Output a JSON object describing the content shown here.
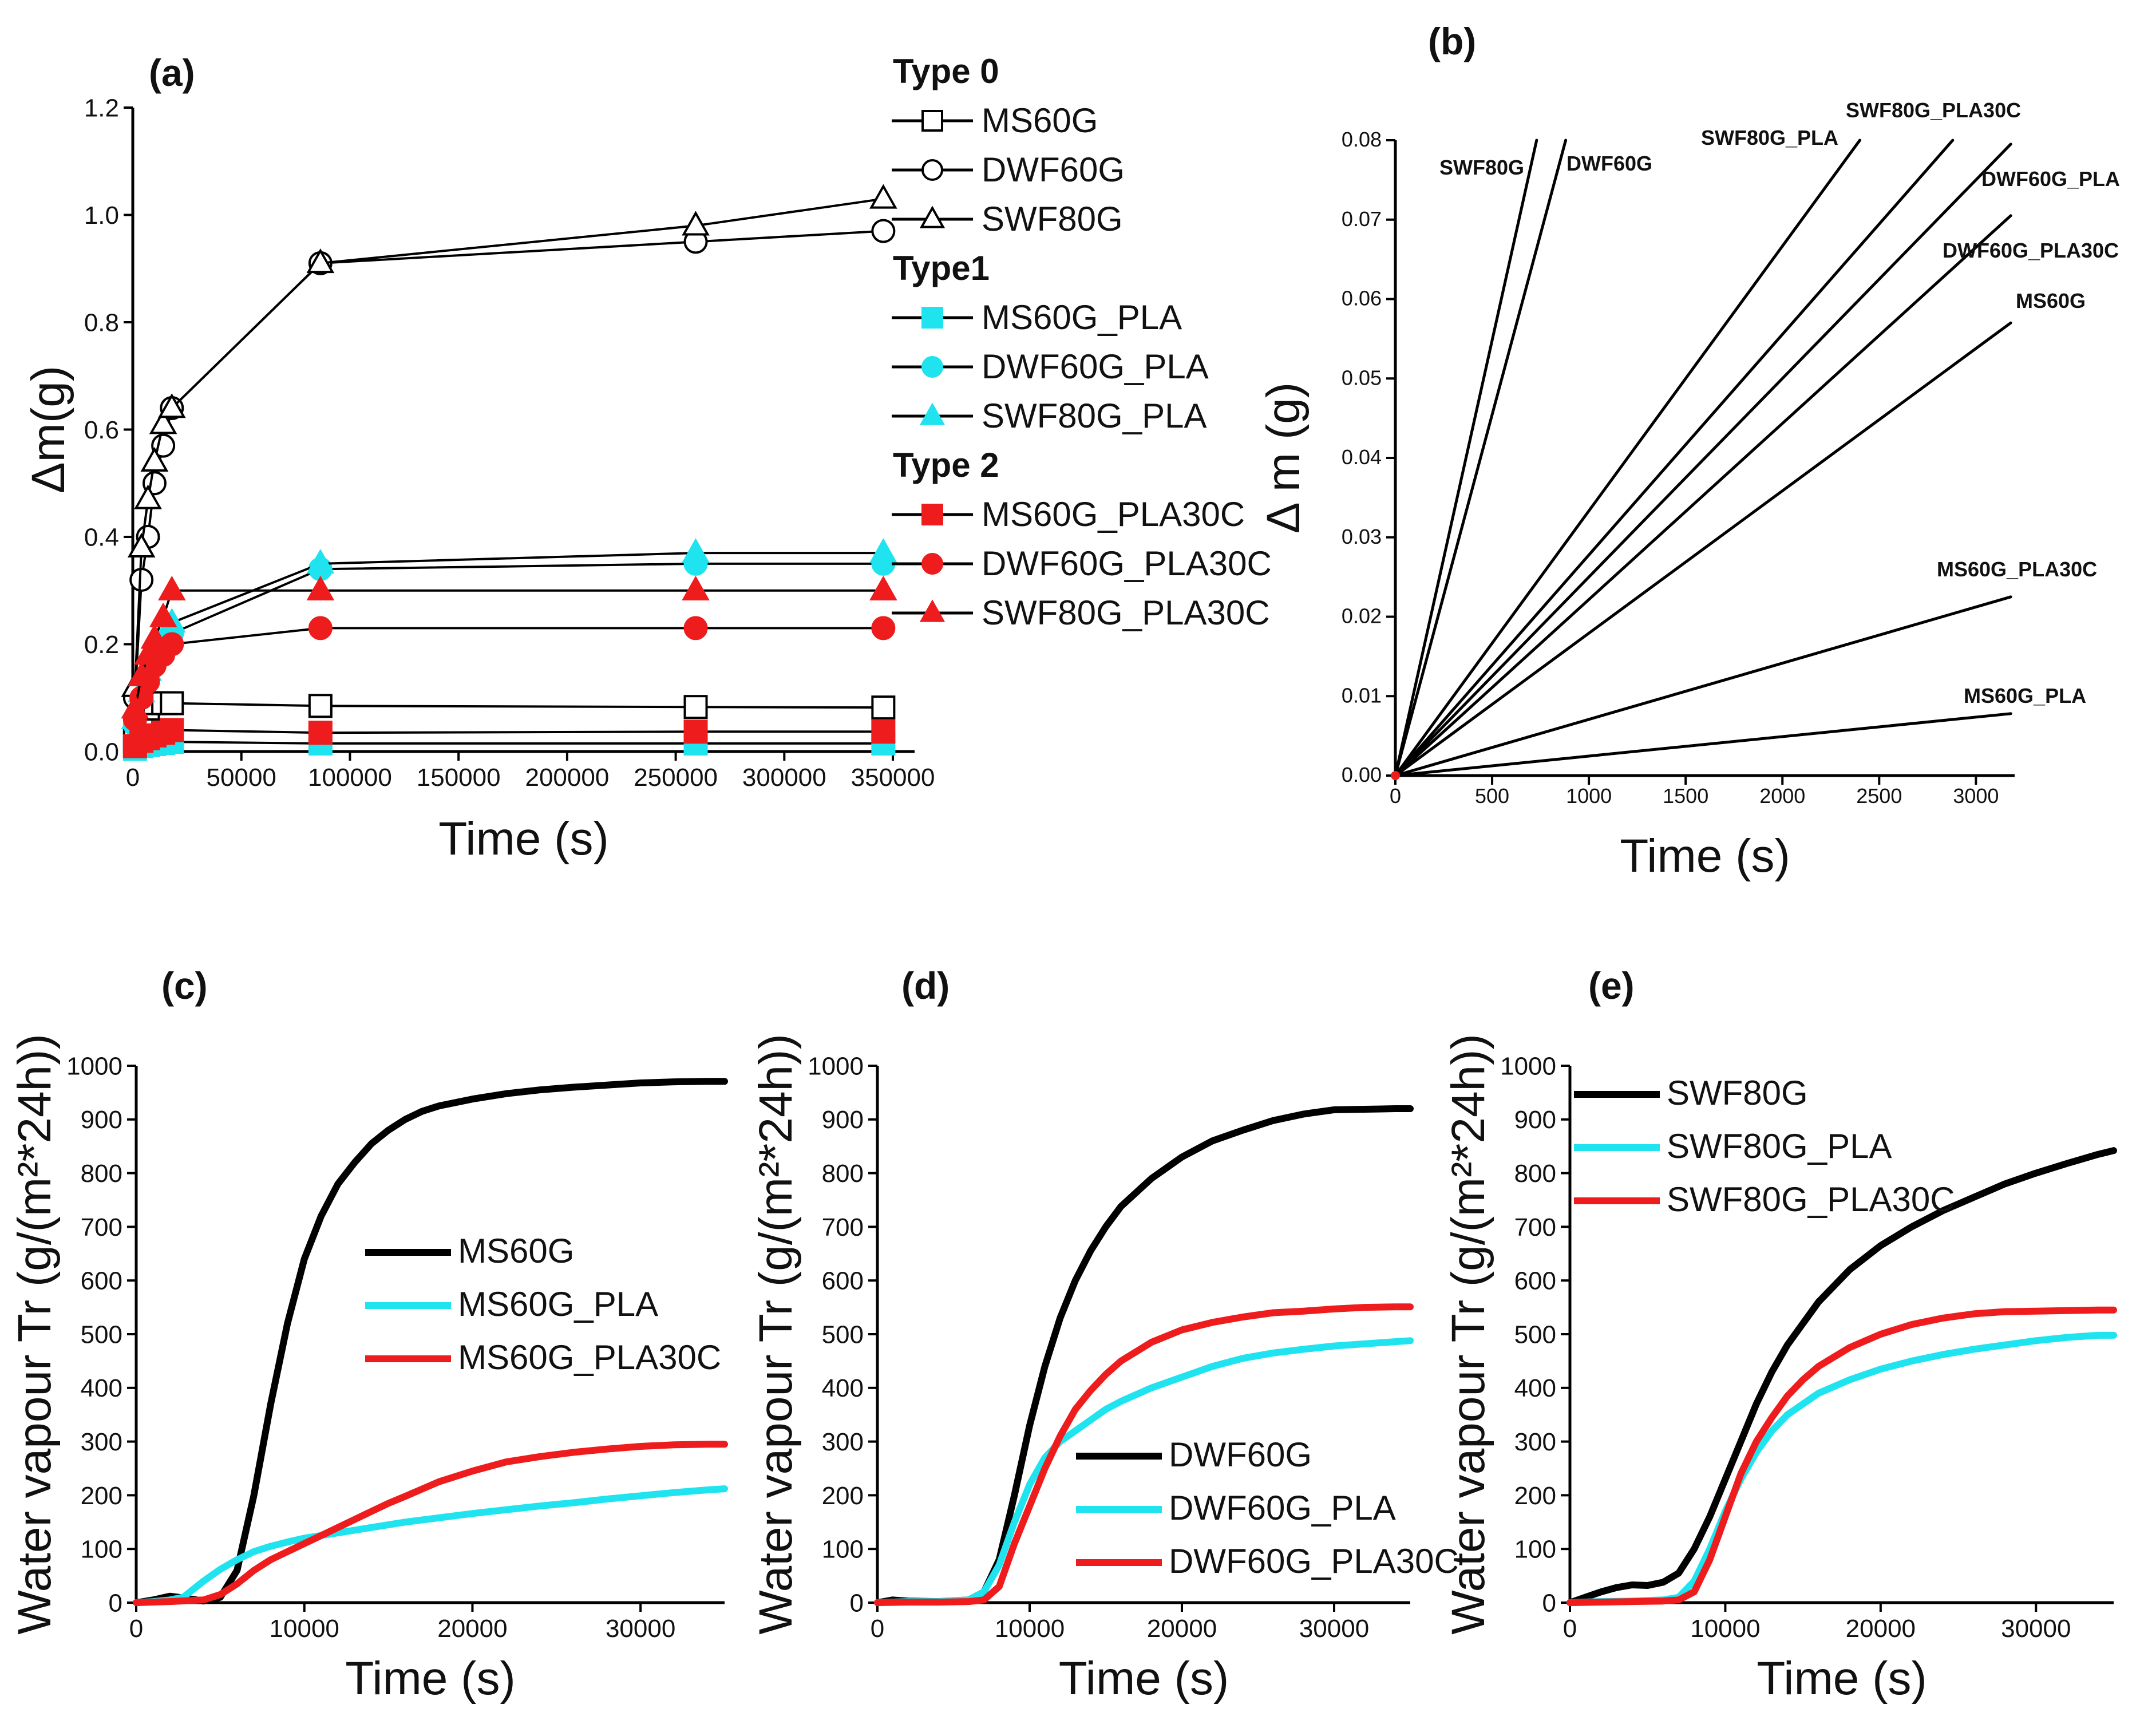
{
  "colors": {
    "black": "#000000",
    "cyan": "#1fe3ee",
    "red": "#ee1c1c"
  },
  "chart_data": [
    {
      "id": "a",
      "type": "line",
      "panel_label": "(a)",
      "xlabel": "Time (s)",
      "ylabel": "Δm(g)",
      "xlim": [
        0,
        360000
      ],
      "ylim": [
        0,
        1.2
      ],
      "xticks": [
        0,
        50000,
        100000,
        150000,
        200000,
        250000,
        300000,
        350000
      ],
      "yticks": [
        0.0,
        0.2,
        0.4,
        0.6,
        0.8,
        1.0,
        1.2
      ],
      "ytick_labels": [
        "0.0",
        "0.2",
        "0.4",
        "0.6",
        "0.8",
        "1.0",
        "1.2"
      ],
      "legend_groups": [
        {
          "title": "Type 0",
          "entries": [
            0,
            1,
            2
          ]
        },
        {
          "title": "Type1",
          "entries": [
            3,
            4,
            5
          ]
        },
        {
          "title": "Type 2",
          "entries": [
            6,
            7,
            8
          ]
        }
      ],
      "series": [
        {
          "name": "MS60G",
          "color": "black",
          "marker": "square",
          "filled": false,
          "x": [
            1000,
            4000,
            7000,
            10000,
            14000,
            18000,
            86400,
            259200,
            345600
          ],
          "y": [
            0.02,
            0.06,
            0.08,
            0.09,
            0.09,
            0.09,
            0.085,
            0.083,
            0.082
          ]
        },
        {
          "name": "DWF60G",
          "color": "black",
          "marker": "circle",
          "filled": false,
          "x": [
            1000,
            4000,
            7000,
            10000,
            14000,
            18000,
            86400,
            259200,
            345600
          ],
          "y": [
            0.1,
            0.32,
            0.4,
            0.5,
            0.57,
            0.64,
            0.91,
            0.95,
            0.97
          ]
        },
        {
          "name": "SWF80G",
          "color": "black",
          "marker": "triangle",
          "filled": false,
          "x": [
            1000,
            4000,
            7000,
            10000,
            14000,
            18000,
            86400,
            259200,
            345600
          ],
          "y": [
            0.12,
            0.38,
            0.47,
            0.54,
            0.61,
            0.64,
            0.91,
            0.98,
            1.03
          ]
        },
        {
          "name": "MS60G_PLA",
          "color": "cyan",
          "marker": "square",
          "filled": true,
          "x": [
            1000,
            4000,
            7000,
            10000,
            14000,
            18000,
            86400,
            259200,
            345600
          ],
          "y": [
            0.005,
            0.01,
            0.012,
            0.014,
            0.016,
            0.018,
            0.015,
            0.015,
            0.015
          ]
        },
        {
          "name": "DWF60G_PLA",
          "color": "cyan",
          "marker": "circle",
          "filled": true,
          "x": [
            1000,
            4000,
            7000,
            10000,
            14000,
            18000,
            86400,
            259200,
            345600
          ],
          "y": [
            0.05,
            0.1,
            0.14,
            0.17,
            0.2,
            0.22,
            0.34,
            0.35,
            0.35
          ]
        },
        {
          "name": "SWF80G_PLA",
          "color": "cyan",
          "marker": "triangle",
          "filled": true,
          "x": [
            1000,
            4000,
            7000,
            10000,
            14000,
            18000,
            86400,
            259200,
            345600
          ],
          "y": [
            0.06,
            0.11,
            0.15,
            0.18,
            0.21,
            0.24,
            0.35,
            0.37,
            0.37
          ]
        },
        {
          "name": "MS60G_PLA30C",
          "color": "red",
          "marker": "square",
          "filled": true,
          "x": [
            1000,
            4000,
            7000,
            10000,
            14000,
            18000,
            86400,
            259200,
            345600
          ],
          "y": [
            0.01,
            0.02,
            0.025,
            0.03,
            0.035,
            0.04,
            0.035,
            0.037,
            0.037
          ]
        },
        {
          "name": "DWF60G_PLA30C",
          "color": "red",
          "marker": "circle",
          "filled": true,
          "x": [
            1000,
            4000,
            7000,
            10000,
            14000,
            18000,
            86400,
            259200,
            345600
          ],
          "y": [
            0.06,
            0.1,
            0.13,
            0.16,
            0.18,
            0.2,
            0.23,
            0.23,
            0.23
          ]
        },
        {
          "name": "SWF80G_PLA30C",
          "color": "red",
          "marker": "triangle",
          "filled": true,
          "x": [
            1000,
            4000,
            7000,
            10000,
            14000,
            18000,
            86400,
            259200,
            345600
          ],
          "y": [
            0.08,
            0.14,
            0.18,
            0.21,
            0.25,
            0.3,
            0.3,
            0.3,
            0.3
          ]
        }
      ]
    },
    {
      "id": "b",
      "type": "line",
      "panel_label": "(b)",
      "xlabel": "Time (s)",
      "ylabel": "Δ m (g)",
      "xlim": [
        0,
        3200
      ],
      "ylim": [
        0,
        0.08
      ],
      "xticks": [
        0,
        500,
        1000,
        1500,
        2000,
        2500,
        3000
      ],
      "yticks": [
        0.0,
        0.01,
        0.02,
        0.03,
        0.04,
        0.05,
        0.06,
        0.07,
        0.08
      ],
      "ytick_labels": [
        "0.00",
        "0.01",
        "0.02",
        "0.03",
        "0.04",
        "0.05",
        "0.06",
        "0.07",
        "0.08"
      ],
      "series": [
        {
          "name": "SWF80G",
          "x": [
            0,
            730
          ],
          "y": [
            0,
            0.08
          ]
        },
        {
          "name": "DWF60G",
          "x": [
            0,
            880
          ],
          "y": [
            0,
            0.08
          ]
        },
        {
          "name": "SWF80G_PLA",
          "x": [
            0,
            2400
          ],
          "y": [
            0,
            0.08
          ]
        },
        {
          "name": "SWF80G_PLA30C",
          "x": [
            0,
            2880
          ],
          "y": [
            0,
            0.08
          ]
        },
        {
          "name": "DWF60G_PLA",
          "x": [
            0,
            3180
          ],
          "y": [
            0,
            0.0795
          ]
        },
        {
          "name": "DWF60G_PLA30C",
          "x": [
            0,
            3180
          ],
          "y": [
            0,
            0.0705
          ]
        },
        {
          "name": "MS60G",
          "x": [
            0,
            3180
          ],
          "y": [
            0,
            0.057
          ]
        },
        {
          "name": "MS60G_PLA30C",
          "x": [
            0,
            3180
          ],
          "y": [
            0,
            0.0225
          ]
        },
        {
          "name": "MS60G_PLA",
          "x": [
            0,
            3180
          ],
          "y": [
            0,
            0.0078
          ]
        }
      ]
    },
    {
      "id": "c",
      "type": "line",
      "panel_label": "(c)",
      "xlabel": "Time (s)",
      "ylabel": "Water vapour Tr (g/(m²*24h))",
      "xlim": [
        0,
        35000
      ],
      "ylim": [
        0,
        1000
      ],
      "xticks": [
        0,
        10000,
        20000,
        30000
      ],
      "yticks": [
        0,
        100,
        200,
        300,
        400,
        500,
        600,
        700,
        800,
        900,
        1000
      ],
      "series": [
        {
          "name": "MS60G",
          "color": "black",
          "x": [
            0,
            1000,
            2000,
            3000,
            4000,
            5000,
            6000,
            7000,
            8000,
            9000,
            10000,
            11000,
            12000,
            13000,
            14000,
            15000,
            16000,
            17000,
            18000,
            20000,
            22000,
            24000,
            26000,
            28000,
            30000,
            32000,
            34000,
            35000
          ],
          "y": [
            0,
            5,
            12,
            8,
            3,
            10,
            60,
            200,
            370,
            520,
            640,
            720,
            780,
            820,
            855,
            880,
            900,
            915,
            925,
            938,
            948,
            955,
            960,
            964,
            968,
            970,
            971,
            971
          ]
        },
        {
          "name": "MS60G_PLA",
          "color": "cyan",
          "x": [
            0,
            1000,
            2000,
            2800,
            4000,
            5000,
            6000,
            7000,
            8000,
            9000,
            10000,
            12000,
            14000,
            16000,
            18000,
            20000,
            22000,
            24000,
            26000,
            28000,
            30000,
            32000,
            34000,
            35000
          ],
          "y": [
            0,
            2,
            5,
            10,
            40,
            62,
            80,
            95,
            105,
            113,
            120,
            130,
            140,
            150,
            158,
            166,
            173,
            180,
            186,
            193,
            199,
            205,
            210,
            212
          ]
        },
        {
          "name": "MS60G_PLA30C",
          "color": "red",
          "x": [
            0,
            2000,
            4000,
            5000,
            6000,
            7000,
            8000,
            9000,
            10000,
            11000,
            12000,
            13000,
            14000,
            15000,
            16000,
            18000,
            20000,
            22000,
            24000,
            26000,
            28000,
            30000,
            32000,
            34000,
            35000
          ],
          "y": [
            0,
            2,
            5,
            15,
            35,
            60,
            80,
            95,
            110,
            125,
            140,
            155,
            170,
            185,
            198,
            225,
            245,
            262,
            272,
            280,
            286,
            291,
            294,
            295,
            295
          ]
        }
      ]
    },
    {
      "id": "d",
      "type": "line",
      "panel_label": "(d)",
      "xlabel": "Time (s)",
      "ylabel": "Water vapour Tr (g/(m²*24h))",
      "xlim": [
        0,
        35000
      ],
      "ylim": [
        0,
        1000
      ],
      "xticks": [
        0,
        10000,
        20000,
        30000
      ],
      "yticks": [
        0,
        100,
        200,
        300,
        400,
        500,
        600,
        700,
        800,
        900,
        1000
      ],
      "series": [
        {
          "name": "DWF60G",
          "color": "black",
          "x": [
            0,
            1000,
            2000,
            4000,
            6000,
            7000,
            8000,
            9000,
            10000,
            11000,
            12000,
            13000,
            14000,
            15000,
            16000,
            18000,
            20000,
            22000,
            24000,
            26000,
            28000,
            30000,
            32000,
            34000,
            35000
          ],
          "y": [
            0,
            5,
            3,
            2,
            5,
            20,
            80,
            200,
            330,
            440,
            530,
            600,
            655,
            700,
            738,
            790,
            830,
            860,
            880,
            898,
            910,
            918,
            919,
            920,
            920
          ]
        },
        {
          "name": "DWF60G_PLA",
          "color": "cyan",
          "x": [
            0,
            2000,
            4000,
            6000,
            7000,
            8000,
            9000,
            10000,
            11000,
            12000,
            13000,
            14000,
            15000,
            16000,
            18000,
            20000,
            22000,
            24000,
            26000,
            28000,
            30000,
            32000,
            34000,
            35000
          ],
          "y": [
            0,
            2,
            2,
            5,
            20,
            70,
            150,
            220,
            270,
            300,
            320,
            340,
            360,
            375,
            400,
            420,
            440,
            455,
            465,
            472,
            478,
            482,
            486,
            488
          ]
        },
        {
          "name": "DWF60G_PLA30C",
          "color": "red",
          "x": [
            0,
            2000,
            4000,
            6000,
            7000,
            8000,
            9000,
            10000,
            11000,
            12000,
            13000,
            14000,
            15000,
            16000,
            18000,
            20000,
            22000,
            24000,
            26000,
            28000,
            30000,
            32000,
            34000,
            35000
          ],
          "y": [
            0,
            1,
            1,
            2,
            5,
            30,
            110,
            180,
            250,
            310,
            360,
            395,
            425,
            450,
            485,
            508,
            522,
            532,
            540,
            543,
            547,
            550,
            551,
            551
          ]
        }
      ]
    },
    {
      "id": "e",
      "type": "line",
      "panel_label": "(e)",
      "xlabel": "Time (s)",
      "ylabel": "Water vapour Tr (g/(m²*24h))",
      "xlim": [
        0,
        35000
      ],
      "ylim": [
        0,
        1000
      ],
      "xticks": [
        0,
        10000,
        20000,
        30000
      ],
      "yticks": [
        0,
        100,
        200,
        300,
        400,
        500,
        600,
        700,
        800,
        900,
        1000
      ],
      "series": [
        {
          "name": "SWF80G",
          "color": "black",
          "x": [
            0,
            1000,
            2000,
            3000,
            4000,
            5000,
            6000,
            7000,
            8000,
            9000,
            10000,
            11000,
            12000,
            13000,
            14000,
            15000,
            16000,
            18000,
            20000,
            22000,
            24000,
            26000,
            28000,
            30000,
            32000,
            34000,
            35000
          ],
          "y": [
            0,
            10,
            20,
            28,
            33,
            32,
            38,
            55,
            100,
            160,
            230,
            300,
            370,
            430,
            480,
            520,
            560,
            620,
            665,
            700,
            730,
            755,
            780,
            800,
            818,
            835,
            842
          ]
        },
        {
          "name": "SWF80G_PLA",
          "color": "cyan",
          "x": [
            0,
            2000,
            4000,
            6000,
            7000,
            8000,
            9000,
            10000,
            11000,
            12000,
            13000,
            14000,
            15000,
            16000,
            18000,
            20000,
            22000,
            24000,
            26000,
            28000,
            30000,
            32000,
            34000,
            35000
          ],
          "y": [
            0,
            2,
            3,
            5,
            10,
            40,
            100,
            170,
            230,
            280,
            320,
            350,
            370,
            390,
            415,
            435,
            450,
            462,
            472,
            480,
            488,
            494,
            498,
            498
          ]
        },
        {
          "name": "SWF80G_PLA30C",
          "color": "red",
          "x": [
            0,
            2000,
            4000,
            6000,
            7000,
            8000,
            9000,
            10000,
            11000,
            12000,
            13000,
            14000,
            15000,
            16000,
            18000,
            20000,
            22000,
            24000,
            26000,
            28000,
            30000,
            32000,
            34000,
            35000
          ],
          "y": [
            0,
            1,
            2,
            3,
            5,
            20,
            80,
            160,
            240,
            300,
            345,
            385,
            415,
            440,
            475,
            500,
            518,
            530,
            538,
            542,
            543,
            544,
            545,
            545
          ]
        }
      ]
    }
  ]
}
